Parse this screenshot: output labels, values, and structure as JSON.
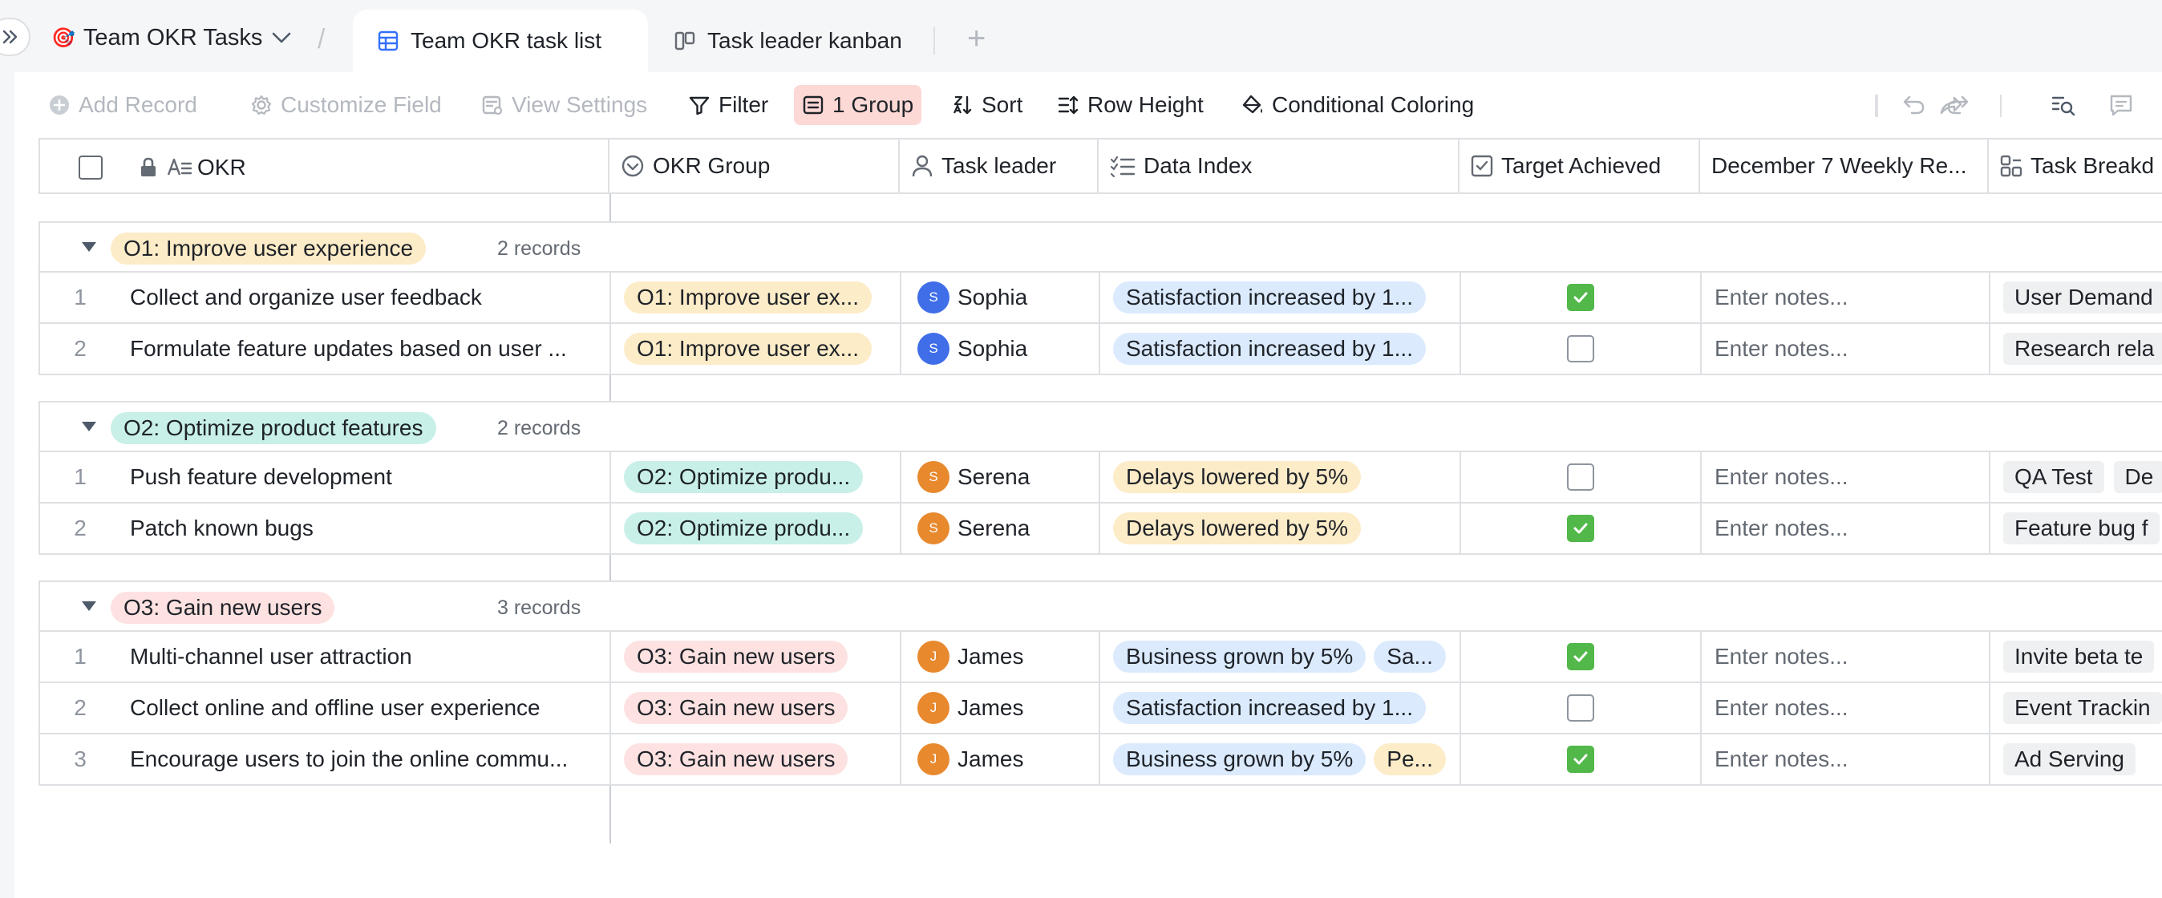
{
  "base": {
    "emoji": "🎯",
    "name": "Team OKR Tasks"
  },
  "tabs": [
    {
      "label": "Team OKR task list"
    },
    {
      "label": "Task leader kanban"
    }
  ],
  "toolbar": {
    "add_record": "Add Record",
    "customize_field": "Customize Field",
    "view_settings": "View Settings",
    "filter": "Filter",
    "group": "1 Group",
    "sort": "Sort",
    "row_height": "Row Height",
    "conditional_coloring": "Conditional Coloring"
  },
  "columns": {
    "okr": "OKR",
    "okr_group": "OKR Group",
    "task_leader": "Task leader",
    "data_index": "Data Index",
    "target_achieved": "Target Achieved",
    "weekly_report": "December 7 Weekly Re...",
    "task_breakdown": "Task Breakd"
  },
  "colors": {
    "o1": "#fdecc8",
    "o2": "#c8f0e8",
    "o3": "#fde2e1",
    "blue_pill": "#dbeafd",
    "orange_pill": "#fdecc8",
    "sophia": "#3f6ee8",
    "serena": "#e8892e",
    "james": "#e8892e"
  },
  "groups": [
    {
      "label": "O1: Improve user experience",
      "count": "2 records",
      "color": "o1",
      "rows": [
        {
          "index": "1",
          "okr": "Collect and organize user feedback",
          "group": "O1: Improve user ex...",
          "leader": "Sophia",
          "initial": "S",
          "avatar": "sophia",
          "data": [
            "Satisfaction increased by 1..."
          ],
          "data_colors": [
            "blue_pill"
          ],
          "achieved": true,
          "notes": "Enter notes...",
          "tasks": [
            "User Demand"
          ]
        },
        {
          "index": "2",
          "okr": "Formulate feature updates based on user ...",
          "group": "O1: Improve user ex...",
          "leader": "Sophia",
          "initial": "S",
          "avatar": "sophia",
          "data": [
            "Satisfaction increased by 1..."
          ],
          "data_colors": [
            "blue_pill"
          ],
          "achieved": false,
          "notes": "Enter notes...",
          "tasks": [
            "Research rela"
          ]
        }
      ]
    },
    {
      "label": "O2: Optimize product features",
      "count": "2 records",
      "color": "o2",
      "rows": [
        {
          "index": "1",
          "okr": "Push feature development",
          "group": "O2: Optimize produ...",
          "leader": "Serena",
          "initial": "S",
          "avatar": "serena",
          "data": [
            "Delays lowered by 5%"
          ],
          "data_colors": [
            "orange_pill"
          ],
          "achieved": false,
          "notes": "Enter notes...",
          "tasks": [
            "QA Test",
            "De"
          ]
        },
        {
          "index": "2",
          "okr": "Patch known bugs",
          "group": "O2: Optimize produ...",
          "leader": "Serena",
          "initial": "S",
          "avatar": "serena",
          "data": [
            "Delays lowered by 5%"
          ],
          "data_colors": [
            "orange_pill"
          ],
          "achieved": true,
          "notes": "Enter notes...",
          "tasks": [
            "Feature bug f"
          ]
        }
      ]
    },
    {
      "label": "O3: Gain new users",
      "count": "3 records",
      "color": "o3",
      "rows": [
        {
          "index": "1",
          "okr": "Multi-channel user attraction",
          "group": "O3: Gain new users",
          "leader": "James",
          "initial": "J",
          "avatar": "james",
          "data": [
            "Business grown by 5%",
            "Sa..."
          ],
          "data_colors": [
            "blue_pill",
            "blue_pill"
          ],
          "achieved": true,
          "notes": "Enter notes...",
          "tasks": [
            "Invite beta te"
          ]
        },
        {
          "index": "2",
          "okr": "Collect online and offline user experience",
          "group": "O3: Gain new users",
          "leader": "James",
          "initial": "J",
          "avatar": "james",
          "data": [
            "Satisfaction increased by 1..."
          ],
          "data_colors": [
            "blue_pill"
          ],
          "achieved": false,
          "notes": "Enter notes...",
          "tasks": [
            "Event Trackin"
          ]
        },
        {
          "index": "3",
          "okr": "Encourage users to join the online commu...",
          "group": "O3: Gain new users",
          "leader": "James",
          "initial": "J",
          "avatar": "james",
          "data": [
            "Business grown by 5%",
            "Pe..."
          ],
          "data_colors": [
            "blue_pill",
            "orange_pill"
          ],
          "achieved": true,
          "notes": "Enter notes...",
          "tasks": [
            "Ad Serving"
          ]
        }
      ]
    }
  ]
}
